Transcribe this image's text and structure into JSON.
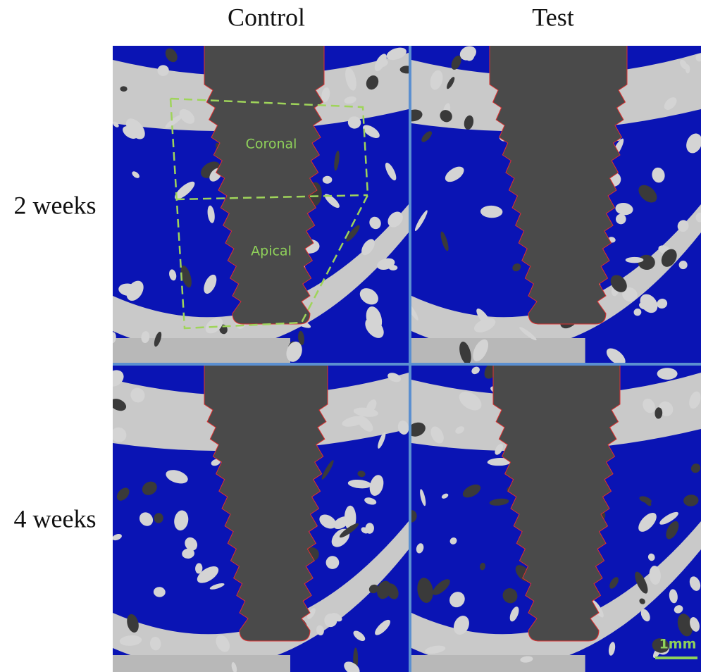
{
  "column_headers": [
    "Control",
    "Test"
  ],
  "row_labels": [
    "2 weeks",
    "4 weeks"
  ],
  "annotations": {
    "coronal": "Coronal",
    "apical": "Apical"
  },
  "scale_bar": "1mm"
}
